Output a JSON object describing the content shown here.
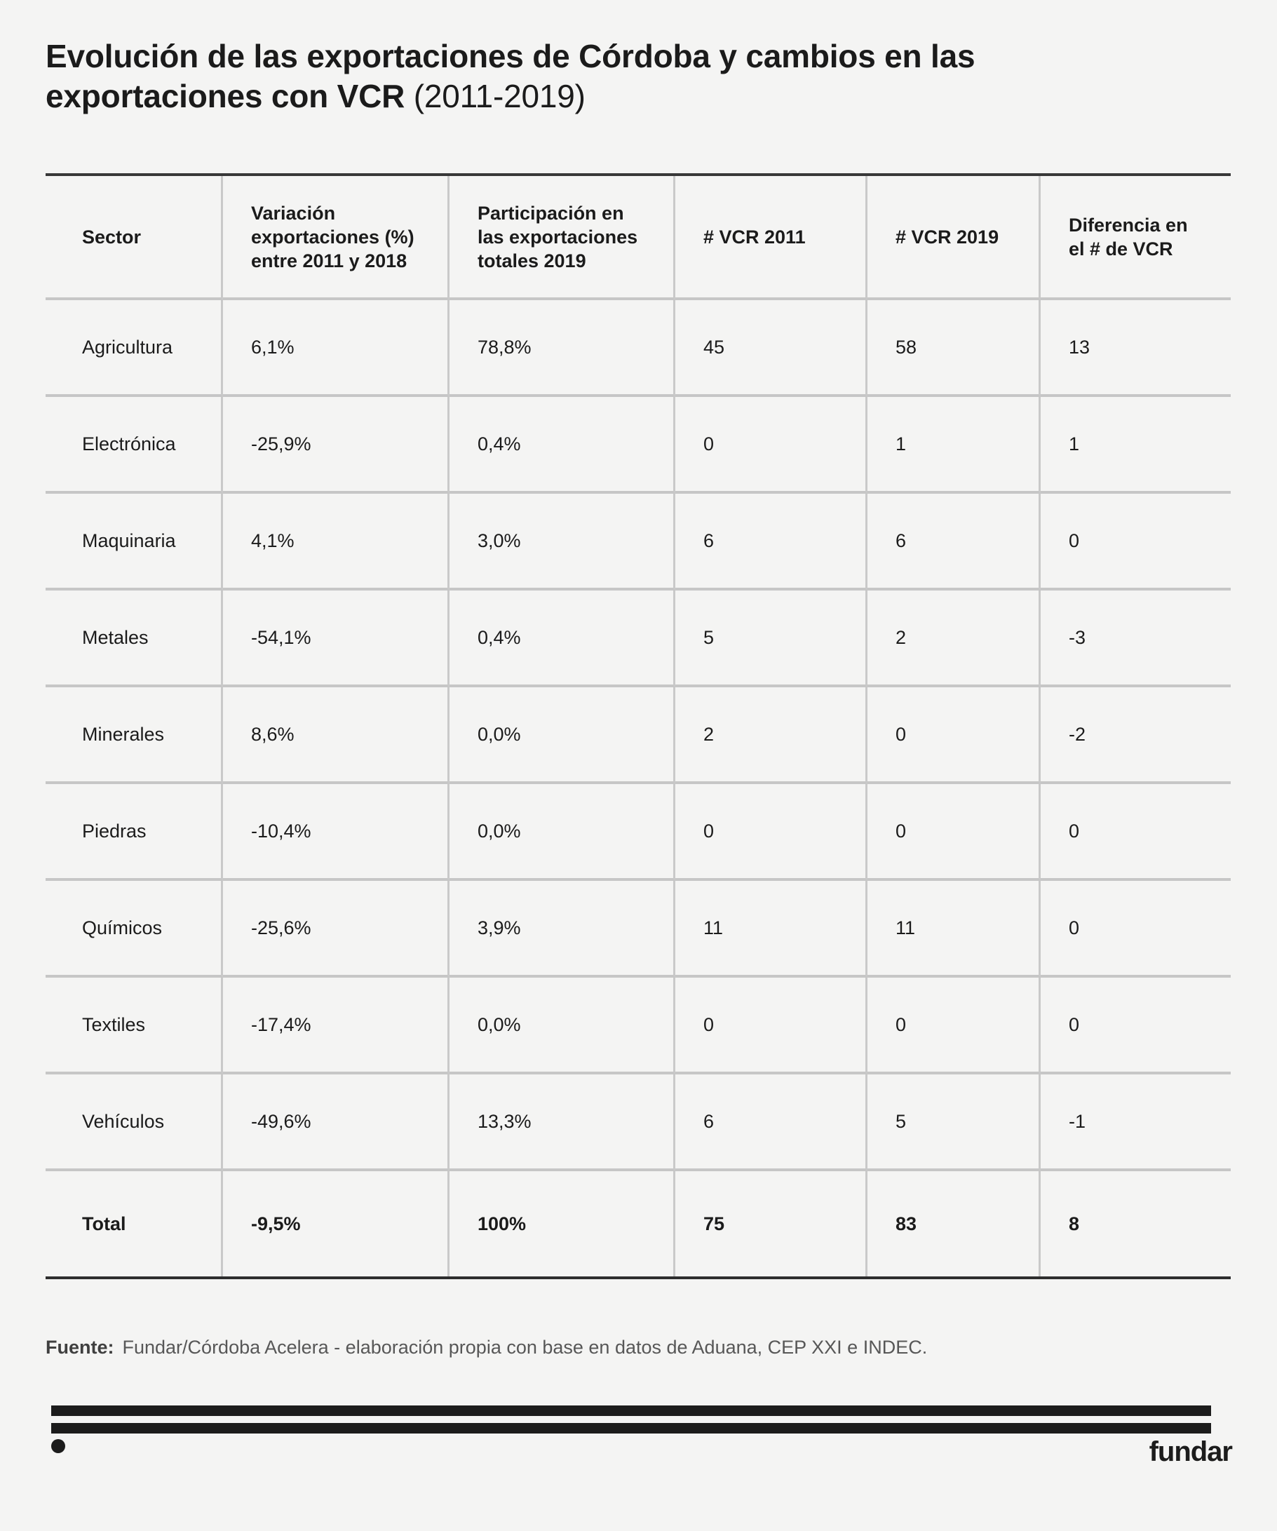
{
  "title": {
    "line1": "Evolución de las exportaciones de Córdoba y cambios en las",
    "line2_bold": "exportaciones con VCR",
    "line2_light": " (2011-2019)"
  },
  "chart_data": {
    "type": "table",
    "title": "Evolución de las exportaciones de Córdoba y cambios en las exportaciones con VCR (2011-2019)",
    "columns": [
      "Sector",
      "Variación\nexportaciones (%)\nentre 2011 y 2018",
      "Participación en\nlas exportaciones\ntotales 2019",
      "# VCR 2011",
      "# VCR 2019",
      "Diferencia en\nel # de VCR"
    ],
    "rows": [
      [
        "Agricultura",
        "6,1%",
        "78,8%",
        "45",
        "58",
        "13"
      ],
      [
        "Electrónica",
        "-25,9%",
        "0,4%",
        "0",
        "1",
        "1"
      ],
      [
        "Maquinaria",
        "4,1%",
        "3,0%",
        "6",
        "6",
        "0"
      ],
      [
        "Metales",
        "-54,1%",
        "0,4%",
        "5",
        "2",
        "-3"
      ],
      [
        "Minerales",
        "8,6%",
        "0,0%",
        "2",
        "0",
        "-2"
      ],
      [
        "Piedras",
        "-10,4%",
        "0,0%",
        "0",
        "0",
        "0"
      ],
      [
        "Químicos",
        "-25,6%",
        "3,9%",
        "11",
        "11",
        "0"
      ],
      [
        "Textiles",
        "-17,4%",
        "0,0%",
        "0",
        "0",
        "0"
      ],
      [
        "Vehículos",
        "-49,6%",
        "13,3%",
        "6",
        "5",
        "-1"
      ],
      [
        "Total",
        "-9,5%",
        "100%",
        "75",
        "83",
        "8"
      ]
    ],
    "emphasize_last_row": true,
    "legend_position": "none",
    "grid": "row-and-column-separators"
  },
  "source": {
    "label": "Fuente:",
    "text": "Fundar/Córdoba Acelera - elaboración propia con base en datos de Aduana, CEP XXI e INDEC."
  },
  "brand": {
    "wordmark": "fundar"
  },
  "colors": {
    "background": "#f4f4f3",
    "text": "#1b1b1b",
    "table_border_dark": "#383838",
    "row_separator": "#c6c6c6",
    "column_divider": "#c9c9c9",
    "source_text": "#575757",
    "brand_black": "#1c1c1c"
  }
}
